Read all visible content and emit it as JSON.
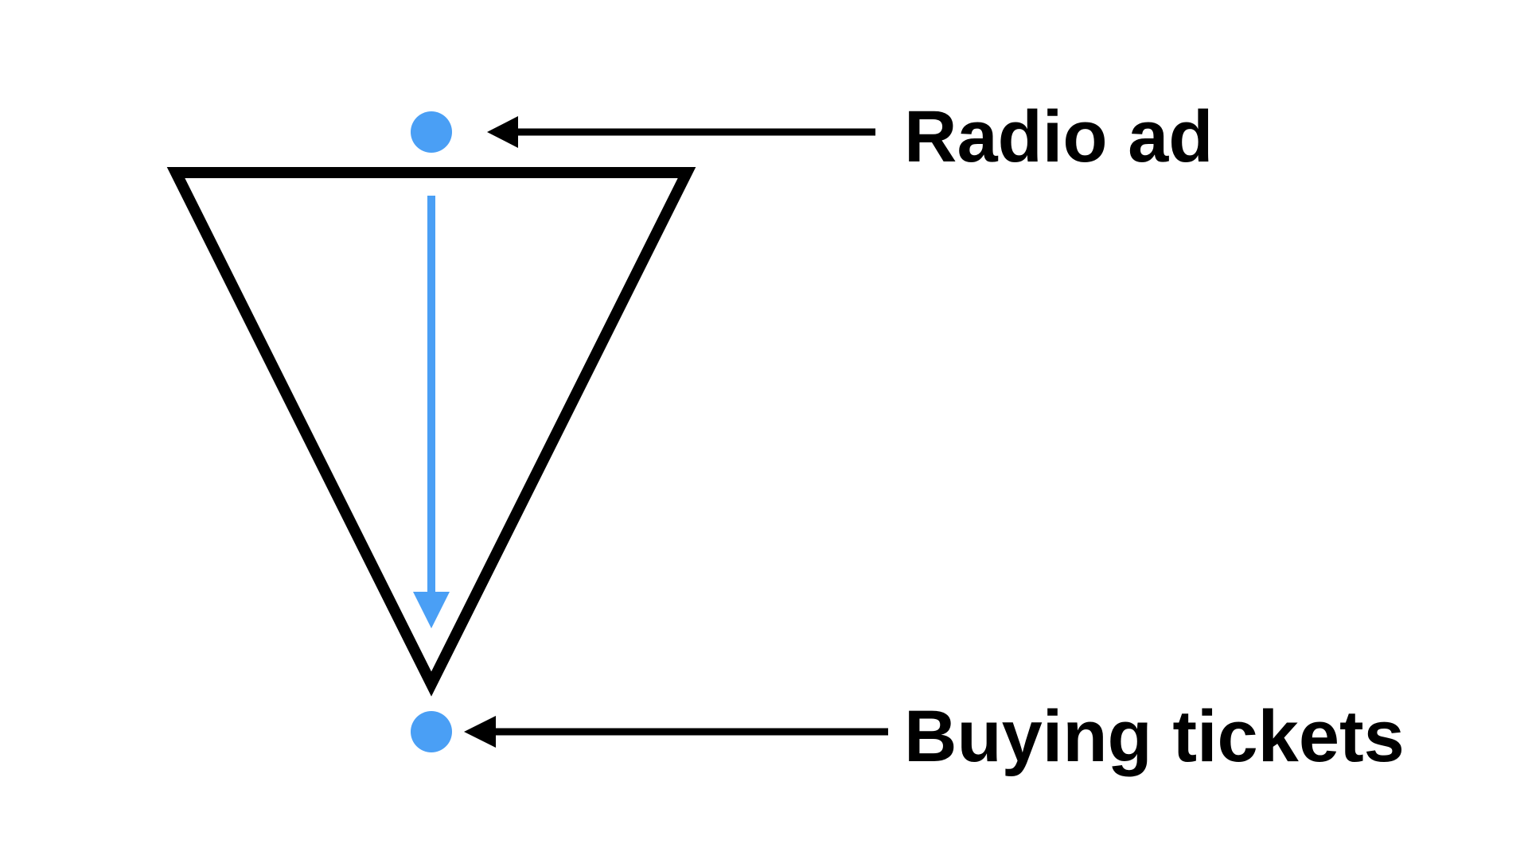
{
  "labels": {
    "top": "Radio ad",
    "bottom": "Buying tickets"
  },
  "colors": {
    "accent": "#4a9ff5",
    "stroke": "#000000",
    "background": "#ffffff"
  }
}
